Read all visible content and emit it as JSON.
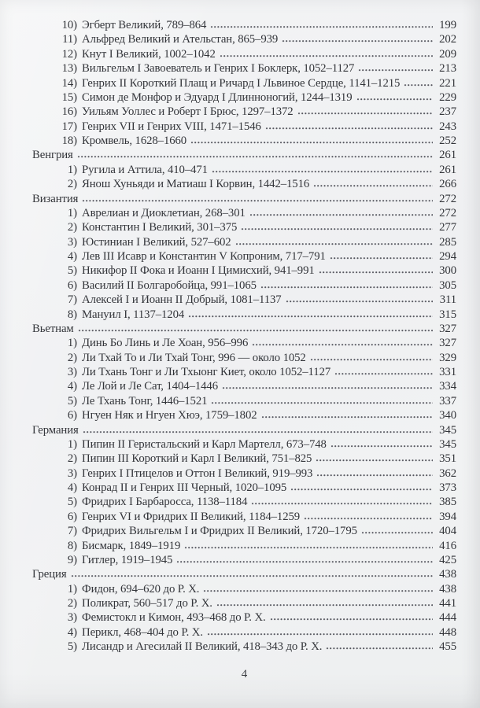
{
  "page": {
    "folio": "4"
  },
  "toc": {
    "entries": [
      {
        "type": "item",
        "num": "10)",
        "text": "Эгберт Великий, 789–864",
        "page": "199"
      },
      {
        "type": "item",
        "num": "11)",
        "text": "Альфред Великий и Ательстан, 865–939",
        "page": "202"
      },
      {
        "type": "item",
        "num": "12)",
        "text": "Кнут I Великий, 1002–1042",
        "page": "209"
      },
      {
        "type": "item",
        "num": "13)",
        "text": "Вильгельм I Завоеватель и Генрих I Боклерк, 1052–1127",
        "page": "213"
      },
      {
        "type": "item",
        "num": "14)",
        "text": "Генрих II Короткий Плащ и Ричард I Львиное Сердце, 1141–1215",
        "page": "221"
      },
      {
        "type": "item",
        "num": "15)",
        "text": "Симон де Монфор и Эдуард I Длинноногий, 1244–1319",
        "page": "229"
      },
      {
        "type": "item",
        "num": "16)",
        "text": "Уильям Уоллес и Роберт I Брюс, 1297–1372",
        "page": "237"
      },
      {
        "type": "item",
        "num": "17)",
        "text": "Генрих VII и Генрих VIII, 1471–1546",
        "page": "243"
      },
      {
        "type": "item",
        "num": "18)",
        "text": "Кромвель, 1628–1660",
        "page": "252"
      },
      {
        "type": "section",
        "num": "",
        "text": "Венгрия",
        "page": "261"
      },
      {
        "type": "item",
        "num": "1)",
        "text": "Ругила и Аттила, 410–471",
        "page": "261"
      },
      {
        "type": "item",
        "num": "2)",
        "text": "Янош Хуньяди и Матиаш I Корвин, 1442–1516",
        "page": "266"
      },
      {
        "type": "section",
        "num": "",
        "text": "Византия",
        "page": "272"
      },
      {
        "type": "item",
        "num": "1)",
        "text": "Аврелиан и Диоклетиан, 268–301",
        "page": "272"
      },
      {
        "type": "item",
        "num": "2)",
        "text": "Константин I Великий, 301–375",
        "page": "277"
      },
      {
        "type": "item",
        "num": "3)",
        "text": "Юстиниан I Великий, 527–602",
        "page": "285"
      },
      {
        "type": "item",
        "num": "4)",
        "text": "Лев III Исавр и Константин V Копроним, 717–791",
        "page": "294"
      },
      {
        "type": "item",
        "num": "5)",
        "text": "Никифор II Фока и Иоанн I Цимисхий, 941–991",
        "page": "300"
      },
      {
        "type": "item",
        "num": "6)",
        "text": "Василий II Болгаробойца, 991–1065",
        "page": "305"
      },
      {
        "type": "item",
        "num": "7)",
        "text": "Алексей I и Иоанн II Добрый, 1081–1137",
        "page": "311"
      },
      {
        "type": "item",
        "num": "8)",
        "text": "Мануил I, 1137–1204",
        "page": "315"
      },
      {
        "type": "section",
        "num": "",
        "text": "Вьетнам",
        "page": "327"
      },
      {
        "type": "item",
        "num": "1)",
        "text": "Динь Бо Линь и Ле Хоан, 956–996",
        "page": "327"
      },
      {
        "type": "item",
        "num": "2)",
        "text": "Ли Тхай То и Ли Тхай Тонг, 996 — около 1052",
        "page": "329"
      },
      {
        "type": "item",
        "num": "3)",
        "text": "Ли Тхань Тонг и Ли Тхыонг Киет, около 1052–1127",
        "page": "331"
      },
      {
        "type": "item",
        "num": "4)",
        "text": "Ле Лой и Ле Сат, 1404–1446",
        "page": "334"
      },
      {
        "type": "item",
        "num": "5)",
        "text": "Ле Тхань Тонг, 1446–1521",
        "page": "337"
      },
      {
        "type": "item",
        "num": "6)",
        "text": "Нгуен Няк и Нгуен Хюэ, 1759–1802",
        "page": "340"
      },
      {
        "type": "section",
        "num": "",
        "text": "Германия",
        "page": "345"
      },
      {
        "type": "item",
        "num": "1)",
        "text": "Пипин II Геристальский и Карл Мартелл, 673–748",
        "page": "345"
      },
      {
        "type": "item",
        "num": "2)",
        "text": "Пипин III Короткий и Карл I Великий, 751–825",
        "page": "351"
      },
      {
        "type": "item",
        "num": "3)",
        "text": "Генрих I Птицелов и Оттон I Великий, 919–993",
        "page": "362"
      },
      {
        "type": "item",
        "num": "4)",
        "text": "Конрад II и Генрих III Черный, 1020–1095",
        "page": "373"
      },
      {
        "type": "item",
        "num": "5)",
        "text": "Фридрих I Барбаросса, 1138–1184",
        "page": "385"
      },
      {
        "type": "item",
        "num": "6)",
        "text": "Генрих VI и Фридрих II Великий, 1184–1259",
        "page": "394"
      },
      {
        "type": "item",
        "num": "7)",
        "text": "Фридрих Вильгельм I и Фридрих II Великий, 1720–1795",
        "page": "404"
      },
      {
        "type": "item",
        "num": "8)",
        "text": "Бисмарк, 1849–1919",
        "page": "416"
      },
      {
        "type": "item",
        "num": "9)",
        "text": "Гитлер, 1919–1945",
        "page": "425"
      },
      {
        "type": "section",
        "num": "",
        "text": "Греция",
        "page": "438"
      },
      {
        "type": "item",
        "num": "1)",
        "text": "Фидон, 694–620 до Р. Х.",
        "page": "438"
      },
      {
        "type": "item",
        "num": "2)",
        "text": "Поликрат, 560–517 до Р. Х.",
        "page": "441"
      },
      {
        "type": "item",
        "num": "3)",
        "text": "Фемистокл и Кимон, 493–468 до Р. Х.",
        "page": "444"
      },
      {
        "type": "item",
        "num": "4)",
        "text": "Перикл, 468–404 до Р. Х.",
        "page": "448"
      },
      {
        "type": "item",
        "num": "5)",
        "text": "Лисандр и Агесилай II Великий, 418–343 до Р. Х.",
        "page": "455"
      }
    ]
  }
}
